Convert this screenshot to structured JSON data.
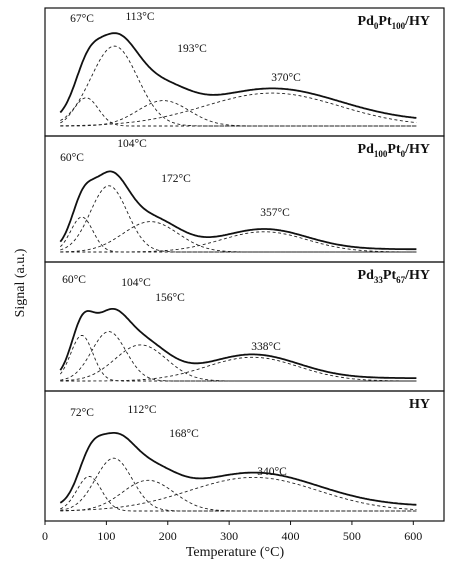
{
  "chart_data": {
    "type": "line",
    "xlabel": "Temperature (°C)",
    "ylabel": "Signal (a.u.)",
    "xlim": [
      0,
      650
    ],
    "x_ticks": [
      "0",
      "100",
      "200",
      "300",
      "400",
      "500",
      "600"
    ],
    "grid": false,
    "legend": "none",
    "x_range_measured": [
      25,
      605
    ],
    "panels": [
      {
        "label_parts": [
          {
            "t": "Pd",
            "sub": false
          },
          {
            "t": "0",
            "sub": true
          },
          {
            "t": "Pt",
            "sub": false
          },
          {
            "t": "100",
            "sub": true
          },
          {
            "t": "/HY",
            "sub": false
          }
        ],
        "baseline": 0.05,
        "peak_labels": [
          "67°C",
          "113°C",
          "193°C",
          "370°C"
        ],
        "components": [
          {
            "center": 67,
            "height": 0.3,
            "width": 20
          },
          {
            "center": 113,
            "height": 0.85,
            "width": 38
          },
          {
            "center": 193,
            "height": 0.27,
            "width": 42
          },
          {
            "center": 370,
            "height": 0.35,
            "width": 110
          }
        ]
      },
      {
        "label_parts": [
          {
            "t": "Pd",
            "sub": false
          },
          {
            "t": "100",
            "sub": true
          },
          {
            "t": "Pt",
            "sub": false
          },
          {
            "t": "0",
            "sub": true
          },
          {
            "t": "/HY",
            "sub": false
          }
        ],
        "baseline": 0.03,
        "peak_labels": [
          "60°C",
          "104°C",
          "172°C",
          "357°C"
        ],
        "components": [
          {
            "center": 60,
            "height": 0.38,
            "width": 18
          },
          {
            "center": 104,
            "height": 0.72,
            "width": 30
          },
          {
            "center": 172,
            "height": 0.33,
            "width": 45
          },
          {
            "center": 357,
            "height": 0.22,
            "width": 70
          }
        ]
      },
      {
        "label_parts": [
          {
            "t": "Pd",
            "sub": false
          },
          {
            "t": "33",
            "sub": true
          },
          {
            "t": "Pt",
            "sub": false
          },
          {
            "t": "67",
            "sub": true
          },
          {
            "t": "/HY",
            "sub": false
          }
        ],
        "baseline": 0.03,
        "peak_labels": [
          "60°C",
          "104°C",
          "156°C",
          "338°C"
        ],
        "components": [
          {
            "center": 60,
            "height": 0.48,
            "width": 18
          },
          {
            "center": 104,
            "height": 0.52,
            "width": 28
          },
          {
            "center": 156,
            "height": 0.38,
            "width": 42
          },
          {
            "center": 338,
            "height": 0.25,
            "width": 75
          }
        ]
      },
      {
        "label_parts": [
          {
            "t": "HY",
            "sub": false
          }
        ],
        "baseline": 0.05,
        "peak_labels": [
          "72°C",
          "112°C",
          "168°C",
          "340°C"
        ],
        "components": [
          {
            "center": 72,
            "height": 0.36,
            "width": 20
          },
          {
            "center": 112,
            "height": 0.55,
            "width": 30
          },
          {
            "center": 168,
            "height": 0.32,
            "width": 42
          },
          {
            "center": 340,
            "height": 0.35,
            "width": 105
          }
        ]
      }
    ]
  }
}
